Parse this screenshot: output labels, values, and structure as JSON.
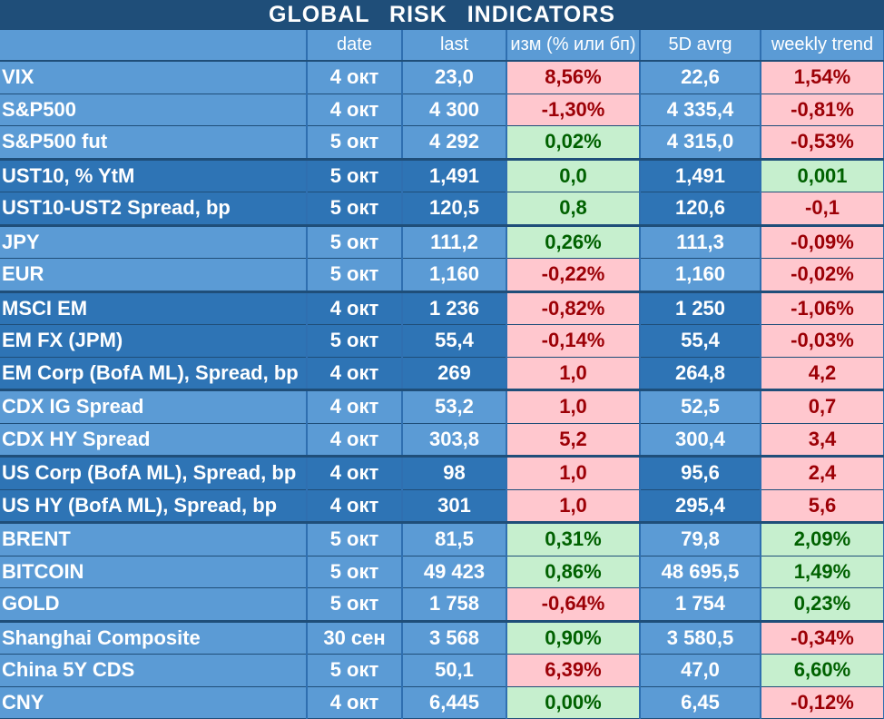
{
  "title": "GLOBAL   RISK   INDICATORS",
  "headers": {
    "name": "",
    "date": "date",
    "last": "last",
    "change": "изм (% или бп)",
    "avg5d": "5D avrg",
    "trend": "weekly trend"
  },
  "colors": {
    "header_bg": "#1f4e79",
    "light_row": "#5b9bd5",
    "dark_row": "#2e74b5",
    "positive_bg": "#c6efce",
    "positive_text": "#006100",
    "negative_bg": "#ffc7ce",
    "negative_text": "#9c0006"
  },
  "rows": [
    {
      "name": "VIX",
      "date": "4 окт",
      "last": "23,0",
      "change": "8,56%",
      "change_sign": "neg",
      "avg5d": "22,6",
      "trend": "1,54%",
      "trend_sign": "neg",
      "group": "light",
      "group_start": false
    },
    {
      "name": "S&P500",
      "date": "4 окт",
      "last": "4 300",
      "change": "-1,30%",
      "change_sign": "neg",
      "avg5d": "4 335,4",
      "trend": "-0,81%",
      "trend_sign": "neg",
      "group": "light",
      "group_start": false
    },
    {
      "name": "S&P500 fut",
      "date": "5 окт",
      "last": "4 292",
      "change": "0,02%",
      "change_sign": "pos",
      "avg5d": "4 315,0",
      "trend": "-0,53%",
      "trend_sign": "neg",
      "group": "light",
      "group_start": false
    },
    {
      "name": "UST10, % YtM",
      "date": "5 окт",
      "last": "1,491",
      "change": "0,0",
      "change_sign": "pos",
      "avg5d": "1,491",
      "trend": "0,001",
      "trend_sign": "pos",
      "group": "dark",
      "group_start": true
    },
    {
      "name": "UST10-UST2 Spread, bp",
      "date": "5 окт",
      "last": "120,5",
      "change": "0,8",
      "change_sign": "pos",
      "avg5d": "120,6",
      "trend": "-0,1",
      "trend_sign": "neg",
      "group": "dark",
      "group_start": false
    },
    {
      "name": "JPY",
      "date": "5 окт",
      "last": "111,2",
      "change": "0,26%",
      "change_sign": "pos",
      "avg5d": "111,3",
      "trend": "-0,09%",
      "trend_sign": "neg",
      "group": "light",
      "group_start": true
    },
    {
      "name": "EUR",
      "date": "5 окт",
      "last": "1,160",
      "change": "-0,22%",
      "change_sign": "neg",
      "avg5d": "1,160",
      "trend": "-0,02%",
      "trend_sign": "neg",
      "group": "light",
      "group_start": false
    },
    {
      "name": "MSCI EM",
      "date": "4 окт",
      "last": "1 236",
      "change": "-0,82%",
      "change_sign": "neg",
      "avg5d": "1 250",
      "trend": "-1,06%",
      "trend_sign": "neg",
      "group": "dark",
      "group_start": true
    },
    {
      "name": "EM FX (JPM)",
      "date": "5 окт",
      "last": "55,4",
      "change": "-0,14%",
      "change_sign": "neg",
      "avg5d": "55,4",
      "trend": "-0,03%",
      "trend_sign": "neg",
      "group": "dark",
      "group_start": false
    },
    {
      "name": "EM Corp (BofA ML), Spread, bp",
      "date": "4 окт",
      "last": "269",
      "change": "1,0",
      "change_sign": "neg",
      "avg5d": "264,8",
      "trend": "4,2",
      "trend_sign": "neg",
      "group": "dark",
      "group_start": false
    },
    {
      "name": "CDX IG Spread",
      "date": "4 окт",
      "last": "53,2",
      "change": "1,0",
      "change_sign": "neg",
      "avg5d": "52,5",
      "trend": "0,7",
      "trend_sign": "neg",
      "group": "light",
      "group_start": true
    },
    {
      "name": "CDX HY Spread",
      "date": "4 окт",
      "last": "303,8",
      "change": "5,2",
      "change_sign": "neg",
      "avg5d": "300,4",
      "trend": "3,4",
      "trend_sign": "neg",
      "group": "light",
      "group_start": false
    },
    {
      "name": "US Corp (BofA ML), Spread, bp",
      "date": "4 окт",
      "last": "98",
      "change": "1,0",
      "change_sign": "neg",
      "avg5d": "95,6",
      "trend": "2,4",
      "trend_sign": "neg",
      "group": "dark",
      "group_start": true
    },
    {
      "name": "US HY (BofA ML), Spread, bp",
      "date": "4 окт",
      "last": "301",
      "change": "1,0",
      "change_sign": "neg",
      "avg5d": "295,4",
      "trend": "5,6",
      "trend_sign": "neg",
      "group": "dark",
      "group_start": false
    },
    {
      "name": "BRENT",
      "date": "5 окт",
      "last": "81,5",
      "change": "0,31%",
      "change_sign": "pos",
      "avg5d": "79,8",
      "trend": "2,09%",
      "trend_sign": "pos",
      "group": "light",
      "group_start": true
    },
    {
      "name": "BITCOIN",
      "date": "5 окт",
      "last": "49 423",
      "change": "0,86%",
      "change_sign": "pos",
      "avg5d": "48 695,5",
      "trend": "1,49%",
      "trend_sign": "pos",
      "group": "light",
      "group_start": false
    },
    {
      "name": "GOLD",
      "date": "5 окт",
      "last": "1 758",
      "change": "-0,64%",
      "change_sign": "neg",
      "avg5d": "1 754",
      "trend": "0,23%",
      "trend_sign": "pos",
      "group": "light",
      "group_start": false
    },
    {
      "name": "Shanghai Composite",
      "date": "30 сен",
      "last": "3 568",
      "change": "0,90%",
      "change_sign": "pos",
      "avg5d": "3 580,5",
      "trend": "-0,34%",
      "trend_sign": "neg",
      "group": "light",
      "group_start": true
    },
    {
      "name": "China 5Y CDS",
      "date": "5 окт",
      "last": "50,1",
      "change": "6,39%",
      "change_sign": "neg",
      "avg5d": "47,0",
      "trend": "6,60%",
      "trend_sign": "pos",
      "group": "light",
      "group_start": false
    },
    {
      "name": "CNY",
      "date": "4 окт",
      "last": "6,445",
      "change": "0,00%",
      "change_sign": "pos",
      "avg5d": "6,45",
      "trend": "-0,12%",
      "trend_sign": "neg",
      "group": "light",
      "group_start": false
    }
  ]
}
